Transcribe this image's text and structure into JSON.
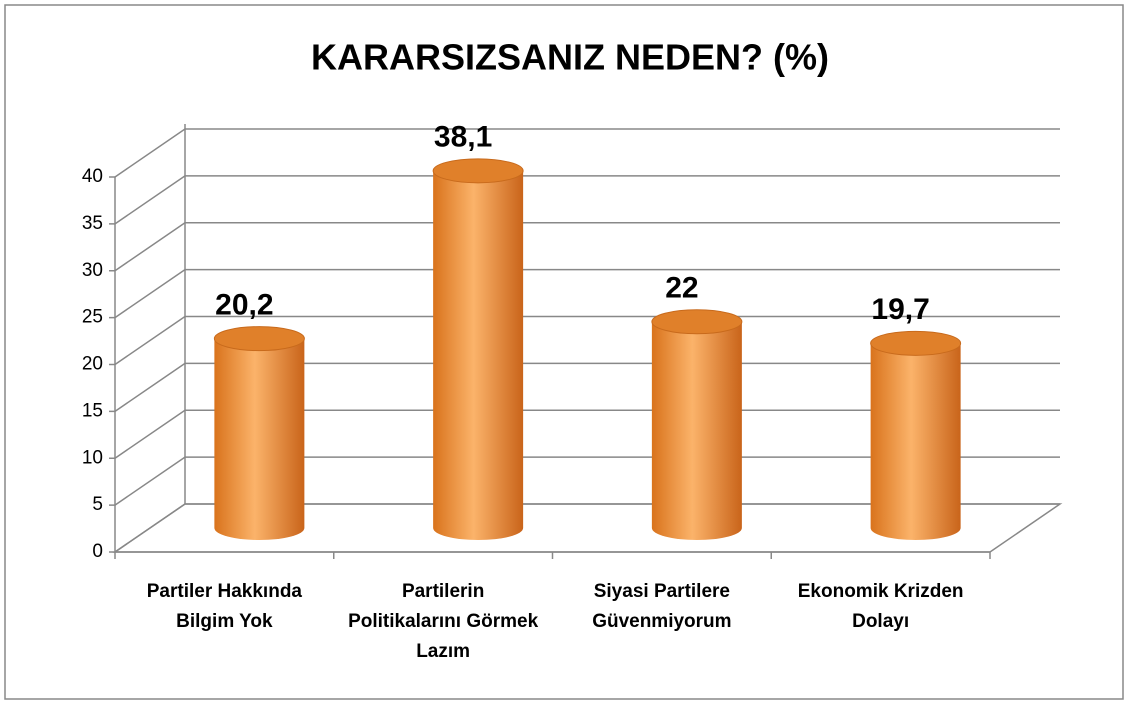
{
  "chart_data": {
    "type": "bar",
    "title": "KARARSIZSANIZ NEDEN? (%)",
    "categories": [
      "Partiler Hakkında Bilgim Yok",
      "Partilerin Politikalarını Görmek Lazım",
      "Siyasi Partilere Güvenmiyorum",
      "Ekonomik Krizden Dolayı"
    ],
    "values": [
      20.2,
      38.1,
      22,
      19.7
    ],
    "value_labels": [
      "20,2",
      "38,1",
      "22",
      "19,7"
    ],
    "color": "#f7963c",
    "ylim": [
      0,
      40
    ],
    "yticks": [
      0,
      5,
      10,
      15,
      20,
      25,
      30,
      35,
      40
    ],
    "grid": true
  }
}
